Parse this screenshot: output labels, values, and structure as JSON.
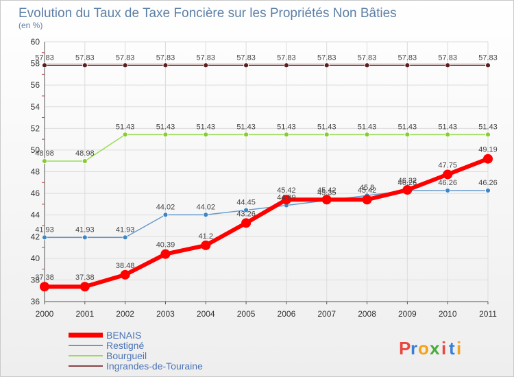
{
  "chart_data": {
    "type": "line",
    "title": "Evolution du Taux de Taxe Foncière sur les Propriétés Non Bâties",
    "subtitle": "(en %)",
    "xlabel": "",
    "ylabel": "",
    "x": [
      "2000",
      "2001",
      "2002",
      "2003",
      "2004",
      "2005",
      "2006",
      "2007",
      "2008",
      "2009",
      "2010",
      "2011"
    ],
    "ylim": [
      36,
      60
    ],
    "yticks": [
      36,
      38,
      40,
      42,
      44,
      46,
      48,
      50,
      52,
      54,
      56,
      58,
      60
    ],
    "grid": true,
    "legend_position": "bottom-left",
    "series": [
      {
        "name": "BENAIS",
        "color": "#ff0000",
        "labels": [
          "37.38",
          "37.38",
          "38.48",
          "40.39",
          "41.2",
          "43.26",
          "45.42",
          "45.42",
          "45.42",
          "46.32",
          "47.75",
          "49.19"
        ],
        "values": [
          37.38,
          37.38,
          38.48,
          40.39,
          41.2,
          43.26,
          45.42,
          45.42,
          45.42,
          46.32,
          47.75,
          49.19
        ]
      },
      {
        "name": "Restigné",
        "color": "#6699cc",
        "labels": [
          "41.93",
          "41.93",
          "41.93",
          "44.02",
          "44.02",
          "44.45",
          "44.89",
          "45.35",
          "45.8",
          "46.26",
          "46.26",
          "46.26"
        ],
        "values": [
          41.93,
          41.93,
          41.93,
          44.02,
          44.02,
          44.45,
          44.89,
          45.35,
          45.8,
          46.26,
          46.26,
          46.26
        ]
      },
      {
        "name": "Bourgueil",
        "color": "#99dd55",
        "labels": [
          "48.98",
          "48.98",
          "51.43",
          "51.43",
          "51.43",
          "51.43",
          "51.43",
          "51.43",
          "51.43",
          "51.43",
          "51.43",
          "51.43"
        ],
        "values": [
          48.98,
          48.98,
          51.43,
          51.43,
          51.43,
          51.43,
          51.43,
          51.43,
          51.43,
          51.43,
          51.43,
          51.43
        ]
      },
      {
        "name": "Ingrandes-de-Touraine",
        "color": "#884444",
        "labels": [
          "57.83",
          "57.83",
          "57.83",
          "57.83",
          "57.83",
          "57.83",
          "57.83",
          "57.83",
          "57.83",
          "57.83",
          "57.83",
          "57.83"
        ],
        "values": [
          57.83,
          57.83,
          57.83,
          57.83,
          57.83,
          57.83,
          57.83,
          57.83,
          57.83,
          57.83,
          57.83,
          57.83
        ]
      }
    ]
  },
  "branding": {
    "logo_letters": [
      "P",
      "r",
      "o",
      "x",
      "i",
      "t",
      "i"
    ],
    "logo_colors": [
      "#e8473f",
      "#3a7fd5",
      "#f2a21c",
      "#4aaa3c",
      "#e8473f",
      "#3a7fd5",
      "#f2a21c"
    ]
  }
}
